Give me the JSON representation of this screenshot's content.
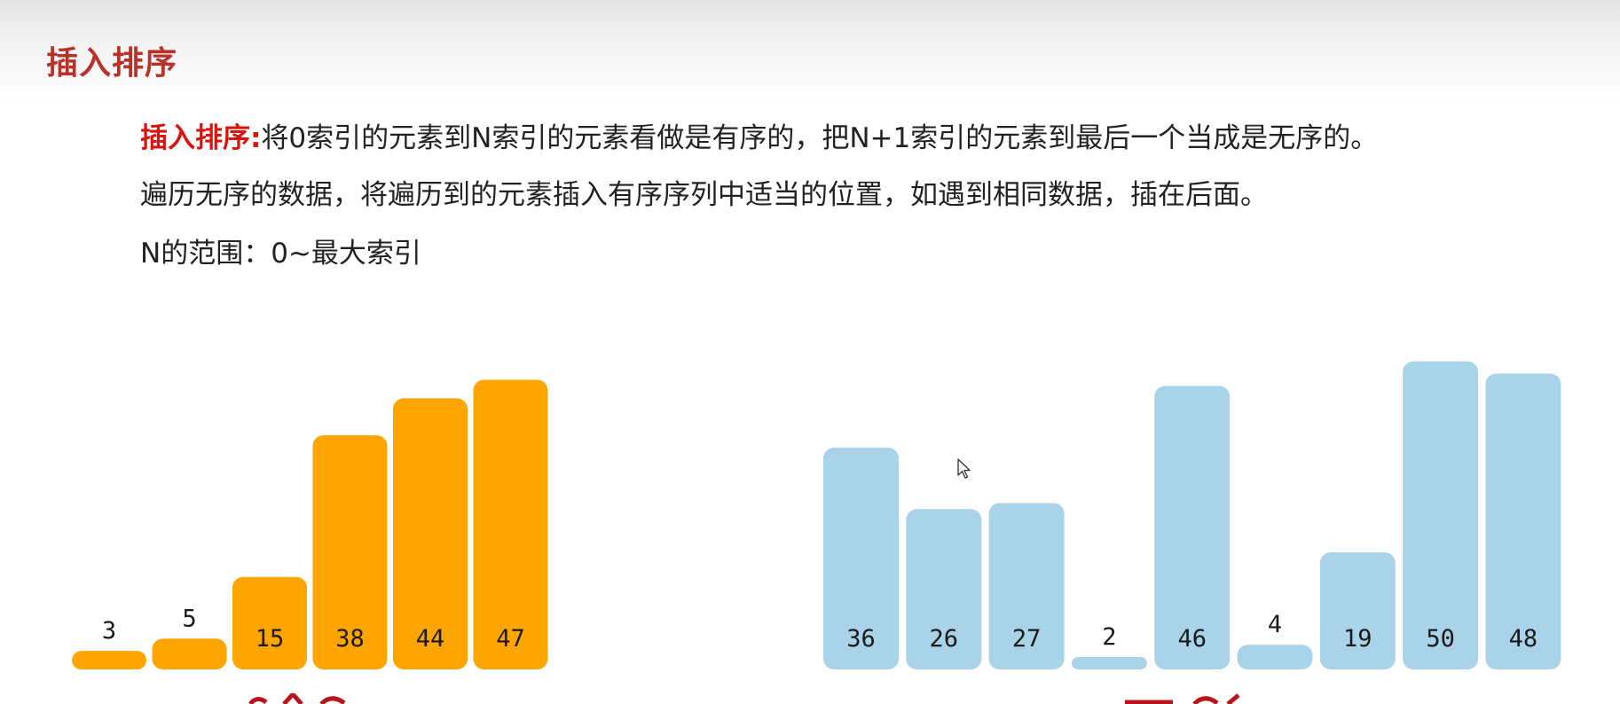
{
  "slide": {
    "title": "插入排序",
    "line1_keyword": "插入排序:",
    "line1_text": "将0索引的元素到N索引的元素看做是有序的，把N+1索引的元素到最后一个当成是无序的。",
    "line2_text": "遍历无序的数据，将遍历到的元素插入有序序列中适当的位置，如遇到相同数据，插在后面。",
    "line3_text": "N的范围：0~最大索引"
  },
  "chart_data": [
    {
      "type": "bar",
      "group": "sorted",
      "values": [
        3,
        5,
        15,
        38,
        44,
        47
      ],
      "color": "#ffa500"
    },
    {
      "type": "bar",
      "group": "unsorted",
      "values": [
        36,
        26,
        27,
        2,
        46,
        4,
        19,
        50,
        48
      ],
      "color": "#a9d3e8"
    }
  ],
  "icons": {
    "cursor": "mouse-pointer-icon"
  }
}
